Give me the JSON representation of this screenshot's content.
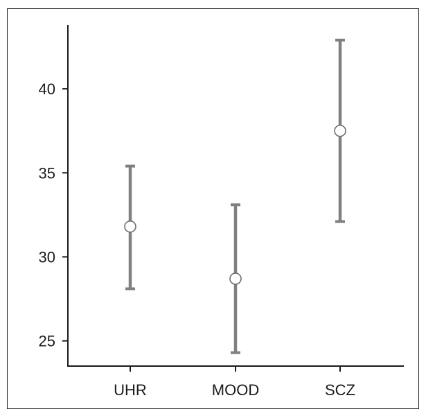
{
  "chart_data": {
    "type": "errorbar",
    "categories": [
      "UHR",
      "MOOD",
      "SCZ"
    ],
    "values": [
      31.8,
      28.7,
      37.5
    ],
    "lower": [
      28.1,
      24.3,
      32.1
    ],
    "upper": [
      35.4,
      33.1,
      42.9
    ],
    "title": "",
    "xlabel": "",
    "ylabel": "",
    "ylim": [
      23.5,
      43.8
    ],
    "yticks": [
      25,
      30,
      35,
      40
    ],
    "ytick_labels": [
      "25",
      "30",
      "35",
      "40"
    ],
    "grid": false,
    "colors": {
      "bar": "#808080",
      "marker_fill": "#ffffff",
      "marker_stroke": "#6e6e6e",
      "axis": "#1a1a1a"
    }
  }
}
